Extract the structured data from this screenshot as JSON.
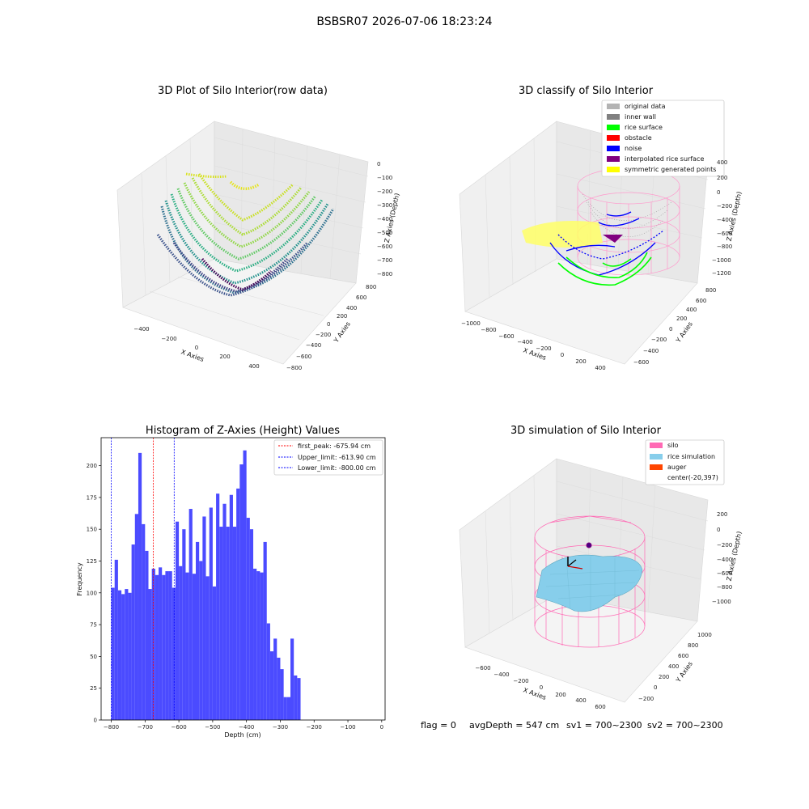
{
  "figure": {
    "suptitle": "BSBSR07 2026-07-06 18:23:24",
    "footer": {
      "flag": "flag = 0",
      "avg_depth": "avgDepth = 547 cm",
      "sv1": "sv1 = 700~2300",
      "sv2": "sv2 = 700~2300"
    }
  },
  "panels": {
    "raw": {
      "title": "3D Plot of Silo Interior(row data)",
      "xlabel": "X Axies",
      "ylabel": "Y Axies",
      "zlabel": "Z Axies (Depth)",
      "xticks": [
        "−400",
        "−200",
        "0",
        "200",
        "400"
      ],
      "yticks": [
        "800",
        "600",
        "400",
        "200",
        "0",
        "−200",
        "−400",
        "−600",
        "−800"
      ],
      "zticks": [
        "0",
        "−100",
        "−200",
        "−300",
        "−400",
        "−500",
        "−600",
        "−700",
        "−800"
      ]
    },
    "classify": {
      "title": "3D classify of Silo Interior",
      "xlabel": "X Axies",
      "ylabel": "Y Axies",
      "zlabel": "Z Axies (Depth)",
      "xticks": [
        "−1000",
        "−800",
        "−600",
        "−400",
        "−200",
        "0",
        "200",
        "400"
      ],
      "yticks": [
        "800",
        "600",
        "400",
        "200",
        "0",
        "−200",
        "−400",
        "−600"
      ],
      "zticks": [
        "400",
        "200",
        "0",
        "−200",
        "−400",
        "−600",
        "−800",
        "−1000",
        "−1200"
      ],
      "legend": [
        {
          "label": "original data",
          "color": "#b3b3b3"
        },
        {
          "label": "inner wall",
          "color": "#808080"
        },
        {
          "label": "rice surface",
          "color": "#00ff00"
        },
        {
          "label": "obstacle",
          "color": "#ff0000"
        },
        {
          "label": "noise",
          "color": "#0000ff"
        },
        {
          "label": "interpolated rice surface",
          "color": "#800080"
        },
        {
          "label": "symmetric generated points",
          "color": "#ffff00"
        }
      ]
    },
    "histogram": {
      "title": "Histogram of Z-Axies (Height) Values",
      "xlabel": "Depth (cm)",
      "ylabel": "Frequency",
      "legend": [
        {
          "label": "first_peak: -675.94 cm",
          "color": "#ff0000"
        },
        {
          "label": "Upper_limit: -613.90 cm",
          "color": "#0000ff"
        },
        {
          "label": "Lower_limit: -800.00 cm",
          "color": "#0000ff"
        }
      ]
    },
    "simulation": {
      "title": "3D simulation of Silo Interior",
      "xlabel": "X Axies",
      "ylabel": "Y Axies",
      "zlabel": "Z Axies (Depth)",
      "xticks": [
        "−600",
        "−400",
        "−200",
        "0",
        "200",
        "400",
        "600"
      ],
      "yticks": [
        "1000",
        "800",
        "600",
        "400",
        "200",
        "0",
        "−200"
      ],
      "zticks": [
        "200",
        "0",
        "−200",
        "−400",
        "−600",
        "−800",
        "−1000"
      ],
      "legend": [
        {
          "label": "silo",
          "color": "#ff69b4"
        },
        {
          "label": "rice simulation",
          "color": "#87ceeb"
        },
        {
          "label": "auger",
          "color": "#ff4500"
        },
        {
          "label": "center(-20,397)",
          "color": ""
        }
      ]
    }
  },
  "chart_data": {
    "type": "bar",
    "title": "Histogram of Z-Axies (Height) Values",
    "xlabel": "Depth (cm)",
    "ylabel": "Frequency",
    "bar_color": "#4b4bff",
    "bin_width": 10,
    "bin_start": -800,
    "values": [
      104,
      126,
      102,
      99,
      103,
      100,
      138,
      162,
      210,
      154,
      133,
      103,
      119,
      114,
      120,
      114,
      117,
      117,
      104,
      156,
      121,
      150,
      116,
      166,
      115,
      140,
      125,
      160,
      113,
      167,
      105,
      178,
      152,
      170,
      152,
      177,
      152,
      182,
      201,
      212,
      159,
      150,
      119,
      117,
      116,
      140,
      76,
      54,
      64,
      49,
      40,
      18,
      18,
      64,
      35,
      33
    ],
    "xlim": [
      -830,
      10
    ],
    "ylim": [
      0,
      222
    ],
    "xticks": [
      -800,
      -700,
      -600,
      -500,
      -400,
      -300,
      -200,
      -100,
      0
    ],
    "yticks": [
      0,
      25,
      50,
      75,
      100,
      125,
      150,
      175,
      200
    ],
    "vlines": [
      {
        "name": "first_peak",
        "x": -675.94,
        "color": "#ff0000"
      },
      {
        "name": "Upper_limit",
        "x": -613.9,
        "color": "#0000ff"
      },
      {
        "name": "Lower_limit",
        "x": -800.0,
        "color": "#0000ff"
      }
    ],
    "legend_position": "top-right"
  }
}
